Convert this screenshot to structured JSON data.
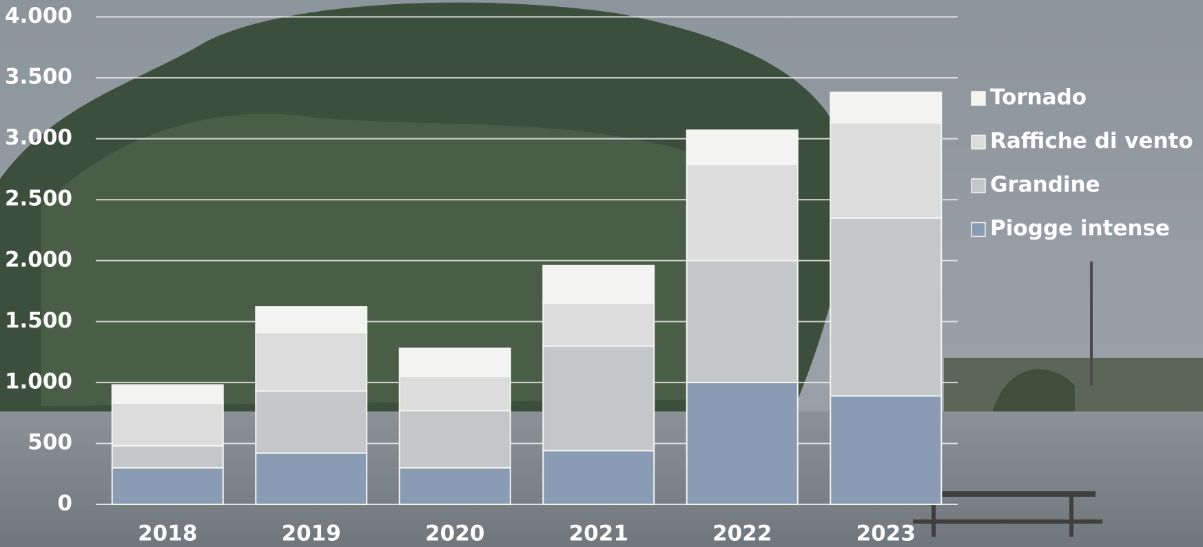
{
  "chart_data": {
    "type": "stacked-bar",
    "categories": [
      "2018",
      "2019",
      "2020",
      "2021",
      "2022",
      "2023"
    ],
    "series": [
      {
        "name": "Piogge intense",
        "color": "#8a9cb4",
        "values": [
          300,
          420,
          300,
          440,
          1000,
          890
        ]
      },
      {
        "name": "Grandine",
        "color": "#c3c7ca",
        "values": [
          180,
          510,
          470,
          860,
          1000,
          1460
        ]
      },
      {
        "name": "Raffiche di vento",
        "color": "#dcdcdc",
        "values": [
          350,
          480,
          280,
          350,
          790,
          780
        ]
      },
      {
        "name": "Tornado",
        "color": "#f3f3f2",
        "values": [
          150,
          210,
          230,
          310,
          280,
          250
        ]
      }
    ],
    "ylim": [
      0,
      4000
    ],
    "yticks": [
      0,
      500,
      {
        "value": 1000,
        "label": "1.000"
      },
      {
        "value": 1500,
        "label": "1.500"
      },
      {
        "value": 2000,
        "label": "2.000"
      },
      {
        "value": 2500,
        "label": "2.500"
      },
      {
        "value": 3000,
        "label": "3.000"
      },
      {
        "value": 3500,
        "label": "3.500"
      },
      {
        "value": 4000,
        "label": "4.000"
      }
    ],
    "grid": true,
    "legend": "right"
  }
}
